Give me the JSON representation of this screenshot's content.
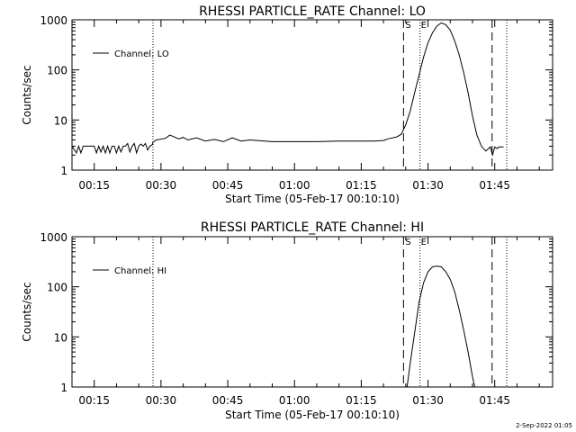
{
  "chart_data": [
    {
      "type": "line",
      "title": "RHESSI PARTICLE_RATE Channel: LO",
      "xlabel": "Start Time (05-Feb-17 00:10:10)",
      "ylabel": "Counts/sec",
      "yscale": "log",
      "ylim": [
        1,
        1000
      ],
      "xlim_minutes": [
        0,
        108
      ],
      "xtick_minutes": [
        5,
        20,
        35,
        50,
        65,
        80,
        95
      ],
      "xtick_labels": [
        "00:15",
        "00:30",
        "00:45",
        "01:00",
        "01:15",
        "01:30",
        "01:45"
      ],
      "ytick_values": [
        1,
        10,
        100,
        1000
      ],
      "ytick_labels": [
        "1",
        "10",
        "100",
        "1000"
      ],
      "legend": "Channel: LO",
      "legend_position": "top-left",
      "markers": {
        "dotted_minutes": [
          18.2,
          78.2,
          97.7
        ],
        "dashed_minutes": [
          74.5,
          94.4
        ],
        "start_label": "S",
        "end_label": "E"
      },
      "series": [
        {
          "name": "Channel: LO",
          "x": [
            0,
            1,
            1.5,
            2,
            2.5,
            3,
            5,
            5.5,
            6,
            6.5,
            7,
            7.5,
            8,
            8.5,
            9,
            9.5,
            10,
            10.5,
            11,
            11.5,
            12,
            12.5,
            13,
            13.5,
            14,
            14.5,
            15,
            15.5,
            16,
            16.5,
            17,
            17.5,
            18,
            18.2,
            19,
            21,
            22,
            24,
            25,
            26,
            28,
            30,
            32,
            34,
            36,
            38,
            40,
            45,
            50,
            55,
            60,
            65,
            68,
            70,
            71,
            73,
            74,
            75,
            76,
            77,
            78,
            79,
            80,
            81,
            82,
            83,
            84,
            85,
            86,
            87,
            88,
            89,
            90,
            91,
            92,
            93,
            94,
            94.5,
            95,
            95.5,
            96,
            97
          ],
          "y": [
            3.0,
            2.2,
            3.0,
            2.2,
            3.0,
            3.0,
            3.0,
            2.2,
            3.0,
            2.3,
            3.0,
            2.2,
            3.0,
            2.2,
            3.0,
            3.0,
            2.2,
            3.0,
            2.3,
            3.0,
            3.0,
            3.4,
            2.3,
            3.0,
            3.4,
            2.2,
            3.0,
            3.3,
            3.0,
            3.4,
            2.5,
            3.0,
            3.2,
            3.6,
            4.0,
            4.3,
            5.0,
            4.2,
            4.5,
            4.0,
            4.4,
            3.8,
            4.1,
            3.7,
            4.4,
            3.8,
            4.0,
            3.7,
            3.7,
            3.7,
            3.8,
            3.8,
            3.8,
            3.9,
            4.2,
            4.6,
            5.2,
            8,
            15,
            35,
            80,
            180,
            350,
            550,
            750,
            870,
            800,
            620,
            380,
            200,
            90,
            35,
            12,
            5,
            3,
            2.4,
            2.9,
            2.0,
            2.9,
            2.7,
            2.9,
            2.9
          ]
        }
      ]
    },
    {
      "type": "line",
      "title": "RHESSI PARTICLE_RATE Channel: HI",
      "xlabel": "Start Time (05-Feb-17 00:10:10)",
      "ylabel": "Counts/sec",
      "yscale": "log",
      "ylim": [
        1,
        1000
      ],
      "xlim_minutes": [
        0,
        108
      ],
      "xtick_minutes": [
        5,
        20,
        35,
        50,
        65,
        80,
        95
      ],
      "xtick_labels": [
        "00:15",
        "00:30",
        "00:45",
        "01:00",
        "01:15",
        "01:30",
        "01:45"
      ],
      "ytick_values": [
        1,
        10,
        100,
        1000
      ],
      "ytick_labels": [
        "1",
        "10",
        "100",
        "1000"
      ],
      "legend": "Channel: HI",
      "legend_position": "top-left",
      "markers": {
        "dotted_minutes": [
          18.2,
          78.2,
          97.7
        ],
        "dashed_minutes": [
          74.5,
          94.4
        ],
        "start_label": "S",
        "end_label": "E"
      },
      "series": [
        {
          "name": "Channel: HI",
          "x": [
            75.3,
            76,
            77,
            78,
            79,
            80,
            81,
            82,
            83,
            84,
            85,
            86,
            87,
            88,
            89,
            90,
            90.5
          ],
          "y": [
            1,
            3,
            12,
            50,
            120,
            200,
            250,
            260,
            250,
            200,
            140,
            80,
            35,
            14,
            5,
            1.6,
            1
          ]
        }
      ]
    }
  ],
  "footer": {
    "timestamp": "2-Sep-2022 01:05"
  }
}
